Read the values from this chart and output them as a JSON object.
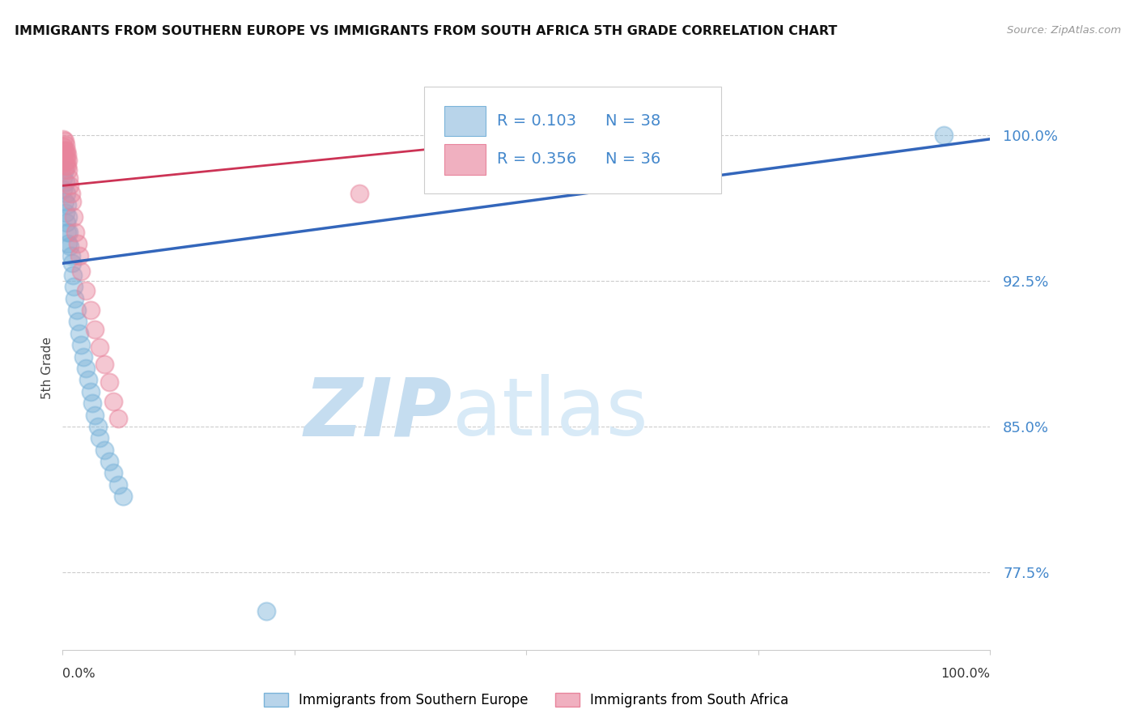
{
  "title": "IMMIGRANTS FROM SOUTHERN EUROPE VS IMMIGRANTS FROM SOUTH AFRICA 5TH GRADE CORRELATION CHART",
  "source": "Source: ZipAtlas.com",
  "ylabel": "5th Grade",
  "yticks": [
    0.775,
    0.85,
    0.925,
    1.0
  ],
  "ytick_labels": [
    "77.5%",
    "85.0%",
    "92.5%",
    "100.0%"
  ],
  "xlim": [
    0.0,
    1.0
  ],
  "ylim": [
    0.735,
    1.025
  ],
  "legend_blue_r": "R = 0.103",
  "legend_blue_n": "N = 38",
  "legend_pink_r": "R = 0.356",
  "legend_pink_n": "N = 36",
  "blue_color": "#7ab3d9",
  "pink_color": "#e8849c",
  "trend_blue_color": "#3366bb",
  "trend_pink_color": "#cc3355",
  "blue_trend_x0": 0.0,
  "blue_trend_y0": 0.934,
  "blue_trend_x1": 1.0,
  "blue_trend_y1": 0.998,
  "pink_trend_x0": 0.0,
  "pink_trend_y0": 0.974,
  "pink_trend_x1": 0.42,
  "pink_trend_y1": 0.994,
  "blue_scatter_x": [
    0.001,
    0.001,
    0.002,
    0.002,
    0.003,
    0.003,
    0.004,
    0.004,
    0.005,
    0.005,
    0.006,
    0.006,
    0.007,
    0.008,
    0.009,
    0.01,
    0.011,
    0.012,
    0.013,
    0.015,
    0.016,
    0.018,
    0.02,
    0.022,
    0.025,
    0.028,
    0.03,
    0.032,
    0.035,
    0.038,
    0.04,
    0.045,
    0.05,
    0.055,
    0.06,
    0.065,
    0.22,
    0.95
  ],
  "blue_scatter_y": [
    0.978,
    0.972,
    0.982,
    0.966,
    0.976,
    0.96,
    0.97,
    0.955,
    0.964,
    0.95,
    0.958,
    0.944,
    0.95,
    0.943,
    0.938,
    0.934,
    0.928,
    0.922,
    0.916,
    0.91,
    0.904,
    0.898,
    0.892,
    0.886,
    0.88,
    0.874,
    0.868,
    0.862,
    0.856,
    0.85,
    0.844,
    0.838,
    0.832,
    0.826,
    0.82,
    0.814,
    0.755,
    1.0
  ],
  "pink_scatter_x": [
    0.0,
    0.0,
    0.001,
    0.001,
    0.001,
    0.002,
    0.002,
    0.002,
    0.003,
    0.003,
    0.003,
    0.004,
    0.004,
    0.005,
    0.005,
    0.006,
    0.006,
    0.007,
    0.008,
    0.009,
    0.01,
    0.012,
    0.014,
    0.016,
    0.018,
    0.02,
    0.025,
    0.03,
    0.035,
    0.04,
    0.045,
    0.05,
    0.055,
    0.06,
    0.32,
    0.42
  ],
  "pink_scatter_y": [
    0.992,
    0.987,
    0.998,
    0.994,
    0.989,
    0.997,
    0.992,
    0.986,
    0.995,
    0.99,
    0.984,
    0.992,
    0.987,
    0.99,
    0.984,
    0.987,
    0.982,
    0.978,
    0.974,
    0.97,
    0.966,
    0.958,
    0.95,
    0.944,
    0.938,
    0.93,
    0.92,
    0.91,
    0.9,
    0.891,
    0.882,
    0.873,
    0.863,
    0.854,
    0.97,
    0.993
  ],
  "watermark_zip": "ZIP",
  "watermark_atlas": "atlas",
  "watermark_color": "#d5e8f5",
  "legend_label_blue": "Immigrants from Southern Europe",
  "legend_label_pink": "Immigrants from South Africa",
  "background_color": "#ffffff",
  "tick_color": "#4488cc",
  "grid_color": "#cccccc"
}
